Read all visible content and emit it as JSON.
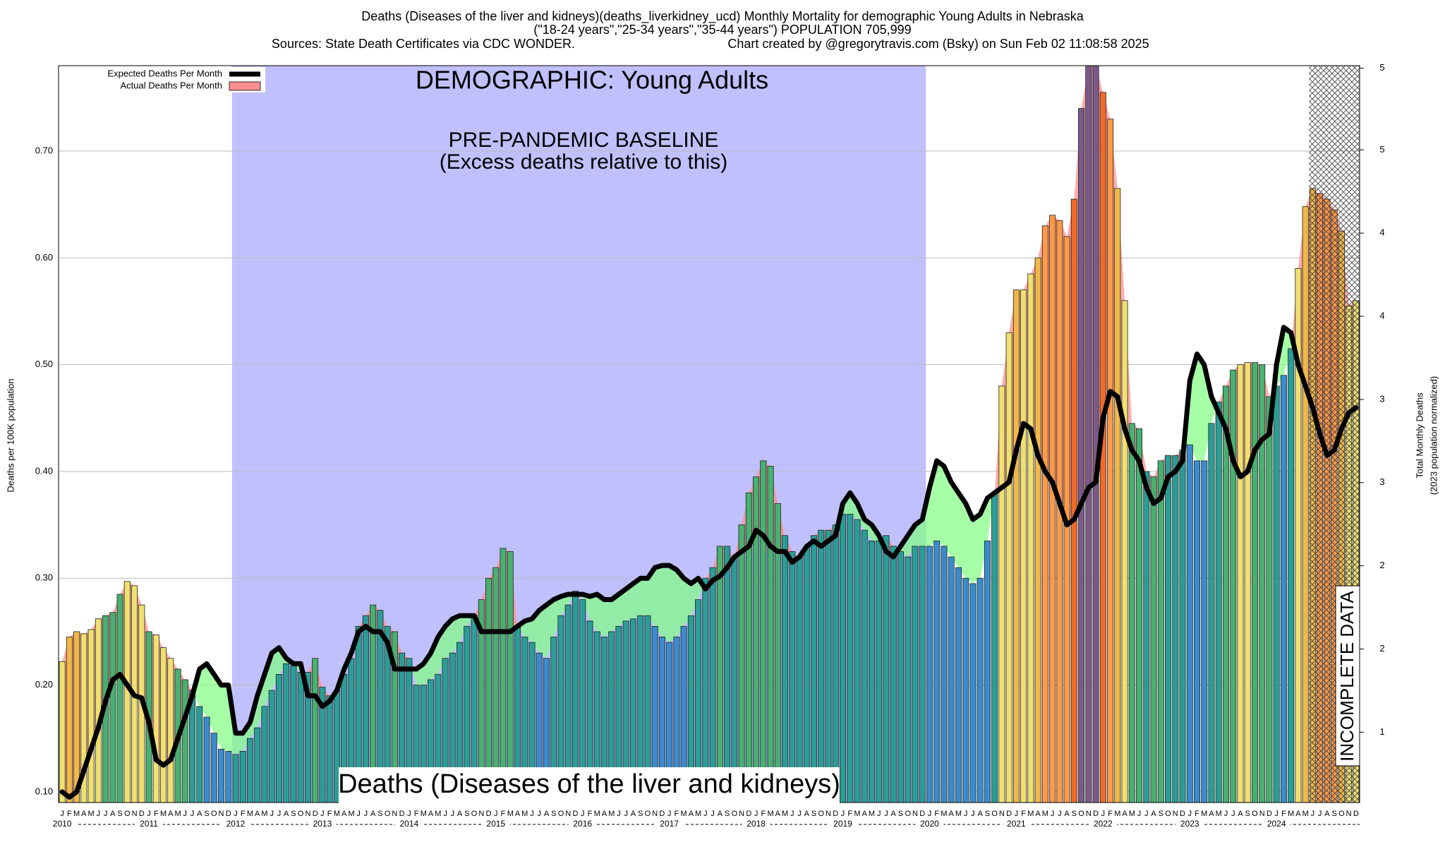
{
  "chart_data": {
    "type": "bar",
    "title": "Deaths (Diseases of the liver and kidneys)(deaths_liverkidney_ucd) Monthly Mortality for demographic Young Adults in Nebraska",
    "subtitle": "(\"18-24 years\",\"25-34 years\",\"35-44 years\") POPULATION 705,999",
    "sources": "Sources: State Death Certificates via CDC WONDER.",
    "credit": "Chart created by @gregorytravis.com (Bsky) on Sun Feb 02 11:08:58 2025",
    "ylabel": "Deaths per 100K population",
    "y2label": "Total Monthly Deaths",
    "y2label_sub": "(2023 population normalized)",
    "annotations": {
      "demographic": "DEMOGRAPHIC: Young Adults",
      "baseline": "PRE-PANDEMIC BASELINE",
      "baseline_note": "(Excess deaths relative to this)",
      "cause": "Deaths (Diseases of the liver and kidneys)",
      "incomplete": "INCOMPLETE DATA"
    },
    "years": [
      "2010",
      "2011",
      "2012",
      "2013",
      "2014",
      "2015",
      "2016",
      "2017",
      "2018",
      "2019",
      "2020",
      "2021",
      "2022",
      "2023",
      "2024"
    ],
    "categories": [
      "J",
      "F",
      "M",
      "A",
      "M",
      "J",
      "J",
      "A",
      "S",
      "O",
      "N",
      "D",
      "J",
      "F",
      "M",
      "A",
      "M",
      "J",
      "J",
      "A",
      "S",
      "O",
      "N",
      "D",
      "J",
      "F",
      "M",
      "A",
      "M",
      "J",
      "J",
      "A",
      "S",
      "O",
      "N",
      "D",
      "J",
      "F",
      "M",
      "A",
      "M",
      "J",
      "J",
      "A",
      "S",
      "O",
      "N",
      "D",
      "J",
      "F",
      "M",
      "A",
      "M",
      "J",
      "J",
      "A",
      "S",
      "O",
      "N",
      "D",
      "J",
      "F",
      "M",
      "A",
      "M",
      "J",
      "J",
      "A",
      "S",
      "O",
      "N",
      "D",
      "J",
      "F",
      "M",
      "A",
      "M",
      "J",
      "J",
      "A",
      "S",
      "O",
      "N",
      "D",
      "J",
      "F",
      "M",
      "A",
      "M",
      "J",
      "J",
      "A",
      "S",
      "O",
      "N",
      "D",
      "J",
      "F",
      "M",
      "A",
      "M",
      "J",
      "J",
      "A",
      "S",
      "O",
      "N",
      "D",
      "J",
      "F",
      "M",
      "A",
      "M",
      "J",
      "J",
      "A",
      "S",
      "O",
      "N",
      "D",
      "J",
      "F",
      "M",
      "A",
      "M",
      "J",
      "J",
      "A",
      "S",
      "O",
      "N",
      "D",
      "J",
      "F",
      "M",
      "A",
      "M",
      "J",
      "J",
      "A",
      "S",
      "O",
      "N",
      "D",
      "J",
      "F",
      "M",
      "A",
      "M",
      "J",
      "J",
      "A",
      "S",
      "O",
      "N",
      "D",
      "J",
      "F",
      "M",
      "A",
      "M",
      "J",
      "J",
      "A",
      "S",
      "O",
      "N",
      "D",
      "J",
      "F",
      "M",
      "A",
      "M",
      "J",
      "J",
      "A",
      "S",
      "O",
      "N",
      "D"
    ],
    "series": [
      {
        "name": "Actual Deaths Per Month",
        "color": "#ff9090",
        "values": [
          0.222,
          0.245,
          0.25,
          0.248,
          0.252,
          0.262,
          0.265,
          0.268,
          0.285,
          0.297,
          0.293,
          0.275,
          0.25,
          0.247,
          0.235,
          0.225,
          0.215,
          0.205,
          0.195,
          0.18,
          0.17,
          0.155,
          0.14,
          0.138,
          0.135,
          0.138,
          0.15,
          0.16,
          0.18,
          0.195,
          0.21,
          0.22,
          0.218,
          0.212,
          0.212,
          0.225,
          0.198,
          0.19,
          0.195,
          0.21,
          0.225,
          0.255,
          0.265,
          0.275,
          0.27,
          0.255,
          0.25,
          0.23,
          0.225,
          0.2,
          0.2,
          0.205,
          0.21,
          0.225,
          0.23,
          0.24,
          0.255,
          0.265,
          0.28,
          0.3,
          0.31,
          0.328,
          0.325,
          0.255,
          0.245,
          0.24,
          0.23,
          0.225,
          0.245,
          0.265,
          0.275,
          0.288,
          0.28,
          0.26,
          0.25,
          0.245,
          0.25,
          0.255,
          0.26,
          0.262,
          0.265,
          0.265,
          0.255,
          0.245,
          0.24,
          0.245,
          0.255,
          0.265,
          0.28,
          0.3,
          0.31,
          0.33,
          0.33,
          0.32,
          0.35,
          0.38,
          0.395,
          0.41,
          0.405,
          0.37,
          0.34,
          0.325,
          0.32,
          0.33,
          0.34,
          0.345,
          0.345,
          0.35,
          0.36,
          0.36,
          0.355,
          0.345,
          0.335,
          0.335,
          0.34,
          0.33,
          0.325,
          0.32,
          0.33,
          0.33,
          0.33,
          0.335,
          0.33,
          0.32,
          0.31,
          0.3,
          0.295,
          0.3,
          0.335,
          0.38,
          0.48,
          0.53,
          0.57,
          0.57,
          0.585,
          0.6,
          0.63,
          0.64,
          0.635,
          0.62,
          0.655,
          0.74,
          0.78,
          0.78,
          0.755,
          0.73,
          0.665,
          0.56,
          0.445,
          0.44,
          0.4,
          0.395,
          0.41,
          0.415,
          0.415,
          0.42,
          0.425,
          0.41,
          0.41,
          0.445,
          0.465,
          0.48,
          0.495,
          0.5,
          0.502,
          0.502,
          0.5,
          0.47,
          0.48,
          0.49,
          0.515,
          0.59,
          0.648,
          0.665,
          0.66,
          0.655,
          0.645,
          0.625,
          0.555,
          0.56
        ]
      },
      {
        "name": "Expected Deaths Per Month",
        "color": "#000000",
        "values": [
          0.1,
          0.095,
          0.1,
          0.12,
          0.14,
          0.16,
          0.185,
          0.205,
          0.21,
          0.2,
          0.19,
          0.188,
          0.165,
          0.13,
          0.125,
          0.13,
          0.15,
          0.17,
          0.19,
          0.215,
          0.22,
          0.21,
          0.2,
          0.2,
          0.155,
          0.155,
          0.165,
          0.19,
          0.21,
          0.23,
          0.235,
          0.225,
          0.22,
          0.22,
          0.19,
          0.19,
          0.18,
          0.185,
          0.195,
          0.215,
          0.23,
          0.25,
          0.255,
          0.25,
          0.25,
          0.24,
          0.215,
          0.215,
          0.215,
          0.215,
          0.22,
          0.23,
          0.245,
          0.255,
          0.262,
          0.265,
          0.265,
          0.265,
          0.25,
          0.25,
          0.25,
          0.25,
          0.25,
          0.255,
          0.26,
          0.262,
          0.27,
          0.275,
          0.28,
          0.283,
          0.285,
          0.285,
          0.285,
          0.283,
          0.285,
          0.28,
          0.28,
          0.285,
          0.29,
          0.295,
          0.3,
          0.3,
          0.31,
          0.312,
          0.312,
          0.308,
          0.3,
          0.295,
          0.3,
          0.29,
          0.298,
          0.302,
          0.31,
          0.32,
          0.325,
          0.33,
          0.345,
          0.34,
          0.33,
          0.325,
          0.325,
          0.315,
          0.32,
          0.33,
          0.335,
          0.33,
          0.335,
          0.34,
          0.37,
          0.38,
          0.37,
          0.355,
          0.35,
          0.34,
          0.325,
          0.32,
          0.33,
          0.34,
          0.35,
          0.355,
          0.385,
          0.41,
          0.405,
          0.39,
          0.38,
          0.37,
          0.355,
          0.36,
          0.375,
          0.38,
          0.385,
          0.39,
          0.42,
          0.445,
          0.44,
          0.415,
          0.4,
          0.39,
          0.37,
          0.35,
          0.355,
          0.37,
          0.385,
          0.39,
          0.45,
          0.475,
          0.47,
          0.44,
          0.42,
          0.41,
          0.385,
          0.37,
          0.375,
          0.395,
          0.4,
          0.41,
          0.485,
          0.51,
          0.5,
          0.47,
          0.455,
          0.44,
          0.41,
          0.395,
          0.4,
          0.42,
          0.43,
          0.435,
          0.5,
          0.535,
          0.53,
          0.5,
          0.48,
          0.46,
          0.435,
          0.415,
          0.42,
          0.44,
          0.455,
          0.46
        ]
      }
    ],
    "palette": [
      "#3a8ccc",
      "#2a9e96",
      "#48b070",
      "#f0e070",
      "#f0b848",
      "#ff9a48",
      "#f06a28",
      "#7a5a88"
    ],
    "deficit_color": "#80ff80",
    "baseline_color": "#c0c0ff",
    "ylim": [
      0.09,
      0.78
    ],
    "yticks": [
      {
        "value": 0.1,
        "label": "0.10"
      },
      {
        "value": 0.2,
        "label": "0.20"
      },
      {
        "value": 0.3,
        "label": "0.30"
      },
      {
        "value": 0.4,
        "label": "0.40"
      },
      {
        "value": 0.5,
        "label": "0.50"
      },
      {
        "value": 0.6,
        "label": "0.60"
      },
      {
        "value": 0.7,
        "label": "0.70"
      }
    ],
    "y2lim": [
      0.635,
      5.507
    ],
    "y2ticks": [
      {
        "value": 1.1,
        "label": "1"
      },
      {
        "value": 1.65,
        "label": "2"
      },
      {
        "value": 2.2,
        "label": "2"
      },
      {
        "value": 2.75,
        "label": "3"
      },
      {
        "value": 3.3,
        "label": "3"
      },
      {
        "value": 3.85,
        "label": "4"
      },
      {
        "value": 4.4,
        "label": "4"
      },
      {
        "value": 4.95,
        "label": "5"
      },
      {
        "value": 5.49,
        "label": "5"
      }
    ],
    "grid": true
  }
}
